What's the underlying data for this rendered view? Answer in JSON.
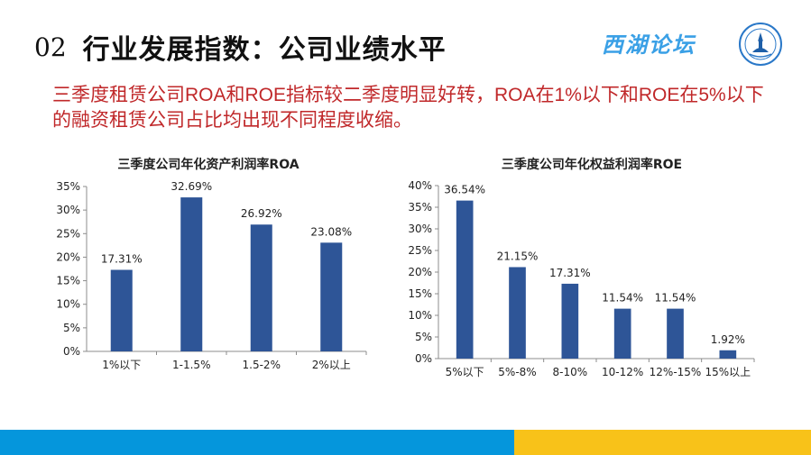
{
  "header": {
    "number": "02",
    "title": "行业发展指数：公司业绩水平",
    "brand": "西湖论坛"
  },
  "subtitle": "三季度租赁公司ROA和ROE指标较二季度明显好转，ROA在1%以下和ROE在5%以下的融资租赁公司占比均出现不同程度收缩。",
  "colors": {
    "bar": "#2e5597",
    "subtitle": "#c0282a",
    "footer_blue": "#0596dc",
    "footer_yellow": "#f8c219"
  },
  "chart_data": [
    {
      "type": "bar",
      "title": "三季度公司年化资产利润率ROA",
      "categories": [
        "1%以下",
        "1-1.5%",
        "1.5-2%",
        "2%以上"
      ],
      "values": [
        17.31,
        32.69,
        26.92,
        23.08
      ],
      "data_labels": [
        "17.31%",
        "32.69%",
        "26.92%",
        "23.08%"
      ],
      "ylim": [
        0,
        35
      ],
      "yticks": [
        "0%",
        "5%",
        "10%",
        "15%",
        "20%",
        "25%",
        "30%",
        "35%"
      ],
      "grid": false,
      "legend": "none"
    },
    {
      "type": "bar",
      "title": "三季度公司年化权益利润率ROE",
      "categories": [
        "5%以下",
        "5%-8%",
        "8-10%",
        "10-12%",
        "12%-15%",
        "15%以上"
      ],
      "values": [
        36.54,
        21.15,
        17.31,
        11.54,
        11.54,
        1.92
      ],
      "data_labels": [
        "36.54%",
        "21.15%",
        "17.31%",
        "11.54%",
        "11.54%",
        "1.92%"
      ],
      "ylim": [
        0,
        40
      ],
      "yticks": [
        "0%",
        "5%",
        "10%",
        "15%",
        "20%",
        "25%",
        "30%",
        "35%",
        "40%"
      ],
      "grid": false,
      "legend": "none"
    }
  ]
}
